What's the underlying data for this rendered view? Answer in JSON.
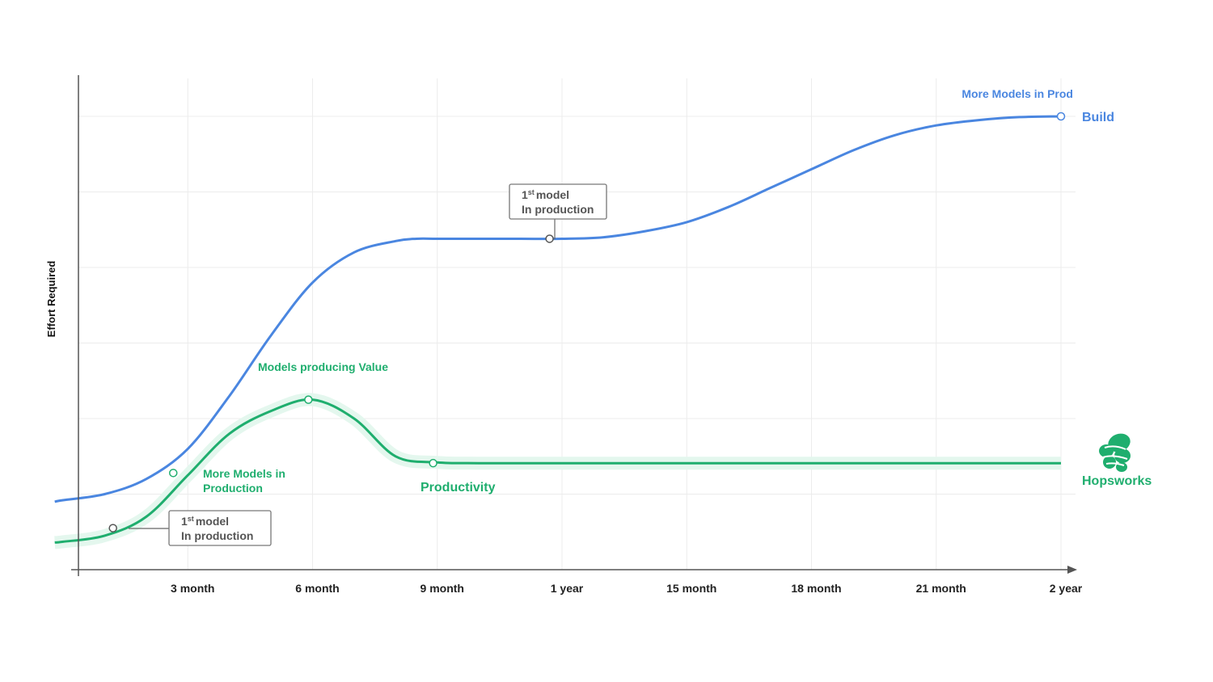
{
  "chart_data": {
    "type": "line",
    "ylabel": "Effort Required",
    "xlabel": "",
    "x_ticks": [
      "3 month",
      "6 month",
      "9 month",
      "1 year",
      "15 month",
      "18 month",
      "21 month",
      "2 year"
    ],
    "x_tick_months": [
      3,
      6,
      9,
      12,
      15,
      18,
      21,
      24
    ],
    "xlim": [
      0,
      24
    ],
    "ylim": [
      0,
      6.5
    ],
    "grid": true,
    "colors": {
      "build": "#4a86e0",
      "hopsworks": "#1fae6e",
      "band": "#e4f7ee",
      "axis": "#555555",
      "grid": "#ececec"
    },
    "series": [
      {
        "name": "Build",
        "color": "#4a86e0",
        "x": [
          -0.2,
          0,
          1,
          2,
          3,
          4,
          5,
          6,
          7,
          8,
          8.5,
          9,
          10,
          11,
          12,
          13,
          14,
          15,
          16,
          17,
          18,
          19,
          20,
          21,
          22,
          23,
          24
        ],
        "y": [
          0.9,
          0.92,
          1.0,
          1.2,
          1.6,
          2.3,
          3.1,
          3.8,
          4.2,
          4.35,
          4.38,
          4.38,
          4.38,
          4.38,
          4.38,
          4.4,
          4.48,
          4.6,
          4.8,
          5.05,
          5.3,
          5.55,
          5.75,
          5.88,
          5.95,
          5.99,
          6.0
        ]
      },
      {
        "name": "Hopsworks",
        "color": "#1fae6e",
        "x": [
          -0.2,
          0,
          1,
          2,
          3,
          4,
          5,
          6,
          7,
          8,
          9,
          10,
          12,
          15,
          18,
          21,
          24
        ],
        "y": [
          0.36,
          0.37,
          0.45,
          0.7,
          1.25,
          1.8,
          2.1,
          2.25,
          2.0,
          1.5,
          1.42,
          1.41,
          1.41,
          1.41,
          1.41,
          1.41,
          1.41
        ]
      }
    ],
    "points": [
      {
        "series": "Build",
        "x": 11.7,
        "y": 4.38
      },
      {
        "series": "Build",
        "x": 24,
        "y": 6.0
      },
      {
        "series": "Hopsworks",
        "x": 1.2,
        "y": 0.55
      },
      {
        "series": "Hopsworks",
        "x": 2.65,
        "y": 1.28
      },
      {
        "series": "Hopsworks",
        "x": 5.9,
        "y": 2.25
      },
      {
        "series": "Hopsworks",
        "x": 8.9,
        "y": 1.41
      }
    ],
    "annotations": {
      "more_models_in_prod": "More Models in Prod",
      "build_label": "Build",
      "first_model_top_line1": "1",
      "first_model_top_sup": "st",
      "first_model_top_word": "model",
      "first_model_top_line2": "In production",
      "models_producing_value": "Models producing Value",
      "more_models_line1": "More Models in",
      "more_models_line2": "Production",
      "productivity": "Productivity",
      "first_model_bottom_line1": "1",
      "first_model_bottom_sup": "st",
      "first_model_bottom_word": "model",
      "first_model_bottom_line2": "In production",
      "hopsworks_label": "Hopsworks"
    }
  }
}
